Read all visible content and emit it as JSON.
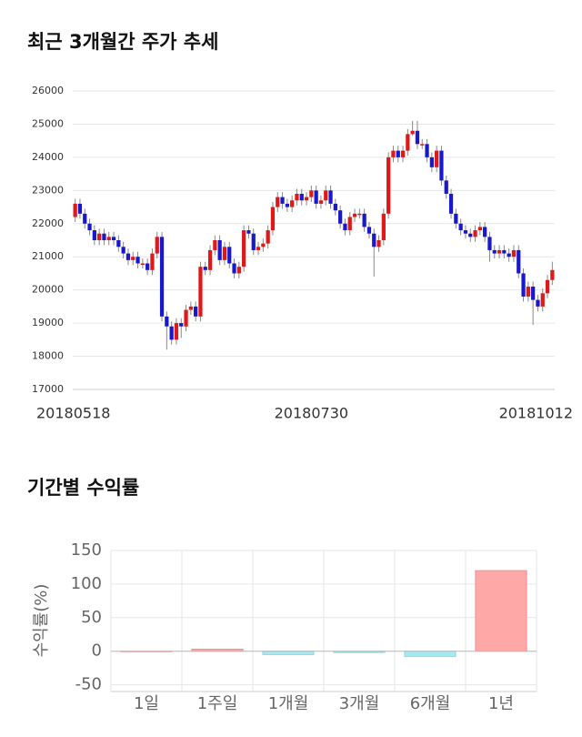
{
  "chart_data": [
    {
      "type": "candlestick",
      "title": "최근 3개월간 주가 추세",
      "categories": [
        "20180518",
        null,
        null,
        null,
        null,
        null,
        null,
        null,
        null,
        null,
        null,
        null,
        null,
        null,
        null,
        null,
        null,
        null,
        null,
        null,
        null,
        null,
        null,
        null,
        null,
        null,
        null,
        null,
        null,
        null,
        null,
        null,
        null,
        null,
        null,
        null,
        null,
        null,
        null,
        null,
        null,
        null,
        null,
        null,
        null,
        null,
        null,
        null,
        null,
        "20180730",
        null,
        null,
        null,
        null,
        null,
        null,
        null,
        null,
        null,
        null,
        null,
        null,
        null,
        null,
        null,
        null,
        null,
        null,
        null,
        null,
        null,
        null,
        null,
        null,
        null,
        null,
        null,
        null,
        null,
        null,
        null,
        null,
        null,
        null,
        null,
        null,
        null,
        null,
        null,
        null,
        null,
        null,
        null,
        null,
        null,
        null,
        null,
        null,
        null,
        "20181012"
      ],
      "open": [
        22200,
        22600,
        22300,
        22000,
        21800,
        21500,
        21700,
        21500,
        21600,
        21500,
        21300,
        21100,
        20900,
        21000,
        20800,
        20800,
        20600,
        21100,
        21600,
        19200,
        18900,
        18500,
        19000,
        18900,
        19400,
        19500,
        19200,
        20700,
        20600,
        21200,
        21500,
        20900,
        21300,
        20800,
        20500,
        20700,
        21800,
        21700,
        21200,
        21300,
        21400,
        21800,
        22500,
        22800,
        22600,
        22500,
        22700,
        22900,
        22700,
        22800,
        23000,
        22600,
        22700,
        23000,
        22600,
        22400,
        22000,
        21800,
        22200,
        22300,
        22300,
        21900,
        21700,
        21300,
        21500,
        22300,
        24000,
        24200,
        24000,
        24200,
        24700,
        24800,
        24400,
        24400,
        24000,
        23700,
        24200,
        23300,
        22900,
        22300,
        22000,
        21800,
        21700,
        21600,
        21800,
        21900,
        21600,
        21200,
        21100,
        21200,
        21100,
        21000,
        21200,
        20500,
        19800,
        20100,
        19700,
        19500,
        19900,
        20300
      ],
      "high": [
        22750,
        22750,
        22450,
        22150,
        21950,
        21850,
        21850,
        21750,
        21750,
        21650,
        21450,
        21250,
        21150,
        21150,
        20950,
        20950,
        21250,
        21750,
        21750,
        19350,
        19050,
        19150,
        19150,
        19550,
        19650,
        19650,
        20850,
        20850,
        21350,
        21650,
        21650,
        21450,
        21450,
        20950,
        20850,
        21950,
        21950,
        21850,
        21450,
        21550,
        21950,
        22650,
        22950,
        22950,
        22750,
        22850,
        23050,
        23050,
        22950,
        23150,
        23150,
        22850,
        23150,
        23150,
        22750,
        22550,
        22150,
        22350,
        22450,
        22450,
        22450,
        22050,
        21850,
        21650,
        22450,
        24150,
        24350,
        24350,
        24350,
        24850,
        25100,
        25100,
        24550,
        24550,
        24150,
        24350,
        24350,
        23450,
        23050,
        22450,
        22150,
        21950,
        21850,
        21950,
        22050,
        22050,
        21750,
        21350,
        21350,
        21350,
        21250,
        21350,
        21350,
        20650,
        20250,
        20250,
        19850,
        20050,
        20450,
        20850
      ],
      "low": [
        22050,
        22150,
        21850,
        21650,
        21350,
        21350,
        21350,
        21350,
        21350,
        21150,
        20950,
        20750,
        20750,
        20650,
        20650,
        20450,
        20450,
        20950,
        19050,
        18200,
        18350,
        18350,
        18550,
        18750,
        19250,
        19050,
        19050,
        20450,
        20450,
        21050,
        20750,
        20750,
        20650,
        20350,
        20350,
        20550,
        21550,
        21050,
        21050,
        21150,
        21250,
        21650,
        22350,
        22450,
        22350,
        22350,
        22550,
        22550,
        22550,
        22650,
        22450,
        22450,
        22550,
        22450,
        22250,
        21850,
        21650,
        21650,
        22050,
        22150,
        21750,
        21550,
        20400,
        21150,
        21350,
        22150,
        23850,
        23850,
        23850,
        24050,
        24650,
        24250,
        24250,
        23850,
        23550,
        23550,
        23150,
        22750,
        22150,
        21850,
        21650,
        21550,
        21450,
        21450,
        21650,
        21450,
        20850,
        20950,
        20950,
        20950,
        20850,
        20850,
        20350,
        19650,
        19650,
        18950,
        19350,
        19350,
        19750,
        20150
      ],
      "close": [
        22600,
        22300,
        22000,
        21800,
        21500,
        21700,
        21500,
        21600,
        21500,
        21300,
        21100,
        20900,
        21000,
        20800,
        20800,
        20600,
        21100,
        21600,
        19200,
        18900,
        18500,
        19000,
        18900,
        19400,
        19500,
        19200,
        20700,
        20600,
        21200,
        21500,
        20900,
        21300,
        20800,
        20500,
        20700,
        21800,
        21700,
        21200,
        21300,
        21400,
        21800,
        22500,
        22800,
        22600,
        22500,
        22700,
        22900,
        22700,
        22800,
        23000,
        22600,
        22700,
        23000,
        22600,
        22400,
        22000,
        21800,
        22200,
        22300,
        22300,
        21900,
        21700,
        21300,
        21500,
        22300,
        24000,
        24200,
        24000,
        24200,
        24700,
        24800,
        24400,
        24400,
        24000,
        23700,
        24200,
        23300,
        22900,
        22300,
        22000,
        21800,
        21700,
        21600,
        21800,
        21900,
        21600,
        21200,
        21100,
        21200,
        21100,
        21000,
        21200,
        20500,
        19800,
        20100,
        19700,
        19500,
        19900,
        20300,
        20600
      ],
      "up_color": "#e01818",
      "down_color": "#1818cc",
      "ylim": [
        17000,
        26000
      ],
      "yticks": [
        17000,
        18000,
        19000,
        20000,
        21000,
        22000,
        23000,
        24000,
        25000,
        26000
      ],
      "grid": true
    },
    {
      "type": "bar",
      "title": "기간별 수익률",
      "y_label": "수익률(%)",
      "categories": [
        "1일",
        "1주일",
        "1개월",
        "3개월",
        "6개월",
        "1년"
      ],
      "values": [
        0,
        3,
        -5,
        -2,
        -8,
        120
      ],
      "positive_color": "#ffa8a8",
      "negative_color": "#a8e8f0",
      "ylim": [
        -60,
        150
      ],
      "yticks": [
        -50,
        0,
        50,
        100,
        150
      ],
      "grid": true
    }
  ]
}
